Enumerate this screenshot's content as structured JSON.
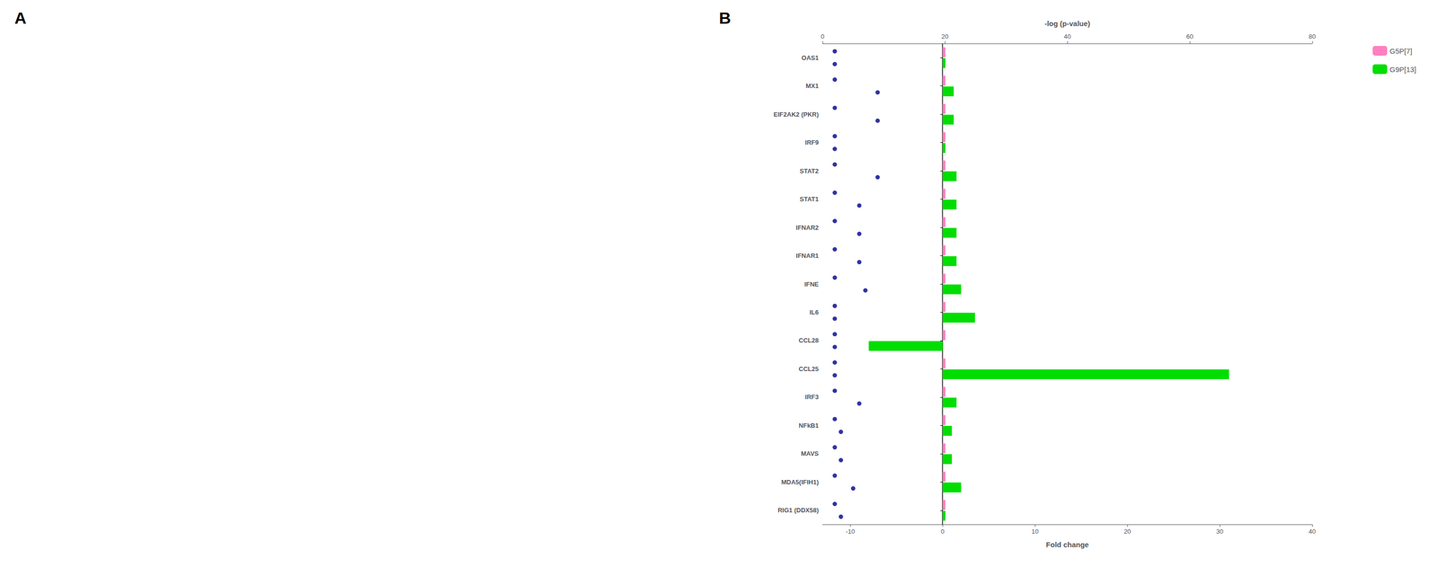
{
  "chart_data": {
    "type": "bar",
    "orientation": "horizontal",
    "annotations": [
      "A",
      "B"
    ],
    "categories": [
      "OAS1",
      "MX1",
      "EIF2AK2 (PKR)",
      "IRF9",
      "STAT2",
      "STAT1",
      "IFNAR2",
      "IFNAR1",
      "IFNE",
      "IL6",
      "CCL28",
      "CCL25",
      "IRF3",
      "NFkB1",
      "MAVS",
      "MDA5(IFIH1)",
      "RIG1 (DDX58)"
    ],
    "xlabel": "Fold change",
    "x2label": "-log (p-value)",
    "xlim": [
      -13,
      40
    ],
    "xticks": [
      -10,
      0,
      10,
      20,
      30,
      40
    ],
    "x2lim": [
      0,
      80
    ],
    "x2ticks": [
      0,
      20,
      40,
      60,
      80
    ],
    "grid": false,
    "legend": "upper right",
    "series": [
      {
        "name": "G5P[7]",
        "color": "#ff80c0",
        "values": [
          0.3,
          0.3,
          0.3,
          0.3,
          0.3,
          0.3,
          0.3,
          0.3,
          0.3,
          0.3,
          0.3,
          0.3,
          0.3,
          0.3,
          0.3,
          0.3,
          0.3
        ]
      },
      {
        "name": "G9P[13]",
        "color": "#00dd00",
        "values": [
          0.3,
          1.2,
          1.2,
          0.3,
          1.5,
          1.5,
          1.5,
          1.5,
          2.0,
          3.5,
          -8.0,
          31.0,
          1.5,
          1.0,
          1.0,
          2.0,
          0.3
        ]
      },
      {
        "type": "scatter",
        "axis": "x2",
        "color": "#00008b",
        "marker": "circle",
        "values": [
          2,
          2,
          2,
          2,
          2,
          2,
          2,
          2,
          2,
          2,
          2,
          2,
          2,
          2,
          2,
          2,
          2
        ]
      },
      {
        "type": "scatter",
        "axis": "x2",
        "color": "#00008b",
        "marker": "circle",
        "values": [
          2,
          9,
          9,
          2,
          9,
          6,
          6,
          6,
          7,
          2,
          2,
          2,
          6,
          3,
          3,
          5,
          3
        ]
      }
    ]
  }
}
